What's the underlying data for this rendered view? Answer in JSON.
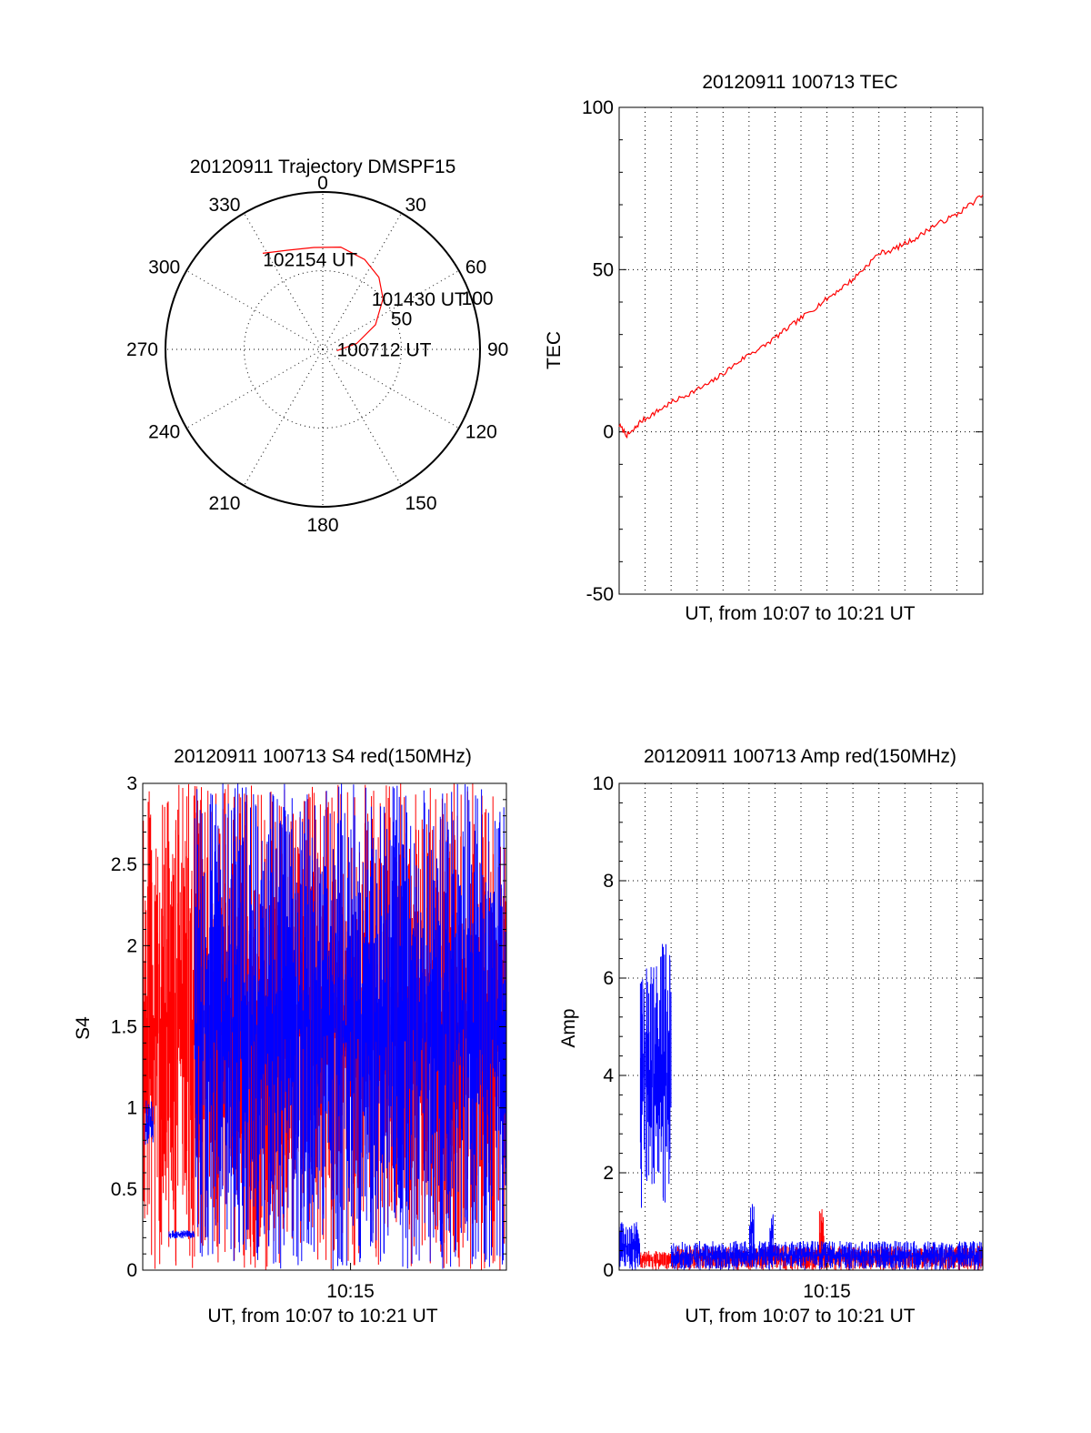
{
  "colors": {
    "red": "#ff0000",
    "blue": "#0000ff",
    "axis": "#000000",
    "grid": "#000000"
  },
  "chart_data": [
    {
      "type": "polar",
      "title": "20120911 Trajectory DMSPF15",
      "angle_labels": [
        "0",
        "30",
        "60",
        "90",
        "120",
        "150",
        "180",
        "210",
        "240",
        "270",
        "300",
        "330"
      ],
      "radial_labels": [
        "50",
        "100"
      ],
      "radial_values": [
        50,
        100
      ],
      "elevation_axis": {
        "center": 0,
        "edge": 100
      },
      "grid": true,
      "series": [
        {
          "color": "red",
          "points": [
            {
              "az": 95,
              "elev": 9
            },
            {
              "az": 80,
              "elev": 22
            },
            {
              "az": 65,
              "elev": 37
            },
            {
              "az": 50,
              "elev": 50
            },
            {
              "az": 38,
              "elev": 58
            },
            {
              "az": 25,
              "elev": 63
            },
            {
              "az": 10,
              "elev": 66
            },
            {
              "az": 355,
              "elev": 65
            },
            {
              "az": 340,
              "elev": 67
            },
            {
              "az": 328,
              "elev": 72
            }
          ]
        }
      ],
      "annotations": [
        {
          "text": "102154 UT",
          "az": 326,
          "elev": 68
        },
        {
          "text": "101430 UT",
          "az": 45,
          "elev": 44
        },
        {
          "text": "100712 UT",
          "az": 95,
          "elev": 9
        }
      ]
    },
    {
      "type": "line",
      "title": "20120911 100713 TEC",
      "xlabel": "UT, from 10:07 to 10:21 UT",
      "ylabel": "TEC",
      "xlim": [
        0,
        14
      ],
      "ylim": [
        -50,
        100
      ],
      "yticks": [
        "-50",
        "0",
        "50",
        "100"
      ],
      "ytick_values": [
        -50,
        0,
        50,
        100
      ],
      "grid": true,
      "series": [
        {
          "color": "red",
          "x": [
            0,
            0.3,
            0.5,
            0.8,
            1.2,
            1.6,
            2.0,
            2.5,
            3.0,
            3.5,
            4.0,
            4.5,
            5.0,
            5.5,
            6.0,
            6.5,
            7.0,
            7.5,
            8.0,
            8.5,
            9.0,
            9.5,
            10.0,
            10.5,
            11.0,
            11.5,
            12.0,
            12.5,
            13.0,
            13.5,
            14.0
          ],
          "y": [
            2,
            -1,
            0,
            3,
            5,
            7,
            9,
            11,
            13,
            15,
            18,
            21,
            24,
            26,
            29,
            32,
            35,
            38,
            41,
            44,
            47,
            51,
            55,
            56,
            58,
            60,
            63,
            65,
            67,
            70,
            73
          ]
        }
      ]
    },
    {
      "type": "line",
      "title": "20120911 100713 S4 red(150MHz)",
      "xlabel": "UT, from 10:07 to 10:21 UT",
      "ylabel": "S4",
      "xlim": [
        0,
        14
      ],
      "ylim": [
        0,
        3
      ],
      "xtick_labels": [
        "10:15"
      ],
      "xtick_values": [
        8
      ],
      "yticks": [
        "0",
        "0.5",
        "1",
        "1.5",
        "2",
        "2.5",
        "3"
      ],
      "ytick_values": [
        0,
        0.5,
        1,
        1.5,
        2,
        2.5,
        3
      ],
      "series": [
        {
          "color": "red",
          "style": "dense noisy spikes spanning 0 to 3",
          "bands": [
            {
              "x": [
                0,
                0.9
              ],
              "level": 1.5,
              "spread": 3
            },
            {
              "x": [
                0.9,
                1.3
              ],
              "level": 1.5,
              "spread": 3
            },
            {
              "x": [
                1.3,
                8.0
              ],
              "level": 1.5,
              "spread": 3
            },
            {
              "x": [
                8.0,
                14.0
              ],
              "level": 1.5,
              "spread": 3
            }
          ]
        },
        {
          "color": "blue",
          "style": "noisy spikes spanning 0 to 3",
          "bands": [
            {
              "x": [
                0.1,
                0.4
              ],
              "level": 0.9,
              "spread": 0.3
            },
            {
              "x": [
                1.0,
                2.0
              ],
              "level": 0.22,
              "spread": 0.05
            },
            {
              "x": [
                2.0,
                14.0
              ],
              "level": 1.5,
              "spread": 3
            }
          ]
        }
      ]
    },
    {
      "type": "line",
      "title": "20120911 100713 Amp red(150MHz)",
      "xlabel": "UT, from 10:07 to 10:21 UT",
      "ylabel": "Amp",
      "xlim": [
        0,
        14
      ],
      "ylim": [
        0,
        10
      ],
      "xtick_labels": [
        "10:15"
      ],
      "xtick_values": [
        8
      ],
      "yticks": [
        "0",
        "2",
        "4",
        "6",
        "8",
        "10"
      ],
      "ytick_values": [
        0,
        2,
        4,
        6,
        8,
        10
      ],
      "grid": true,
      "series": [
        {
          "color": "red",
          "style": "dense noise near baseline",
          "bands": [
            {
              "x": [
                0.8,
                2.0
              ],
              "level": 0.2,
              "spread": 0.4
            },
            {
              "x": [
                2.0,
                14.0
              ],
              "level": 0.25,
              "spread": 0.5
            },
            {
              "x": [
                7.7,
                7.9
              ],
              "level": 0.7,
              "spread": 1.2
            }
          ]
        },
        {
          "color": "blue",
          "style": "dense noise",
          "bands": [
            {
              "x": [
                0,
                0.8
              ],
              "level": 0.5,
              "spread": 1.0
            },
            {
              "x": [
                0.8,
                2.0
              ],
              "level": 4.0,
              "spread": 5.5
            },
            {
              "x": [
                2.0,
                14.0
              ],
              "level": 0.3,
              "spread": 0.6
            },
            {
              "x": [
                5.0,
                5.2
              ],
              "level": 0.8,
              "spread": 1.2
            },
            {
              "x": [
                5.8,
                5.95
              ],
              "level": 0.7,
              "spread": 1.0
            }
          ]
        }
      ]
    }
  ]
}
